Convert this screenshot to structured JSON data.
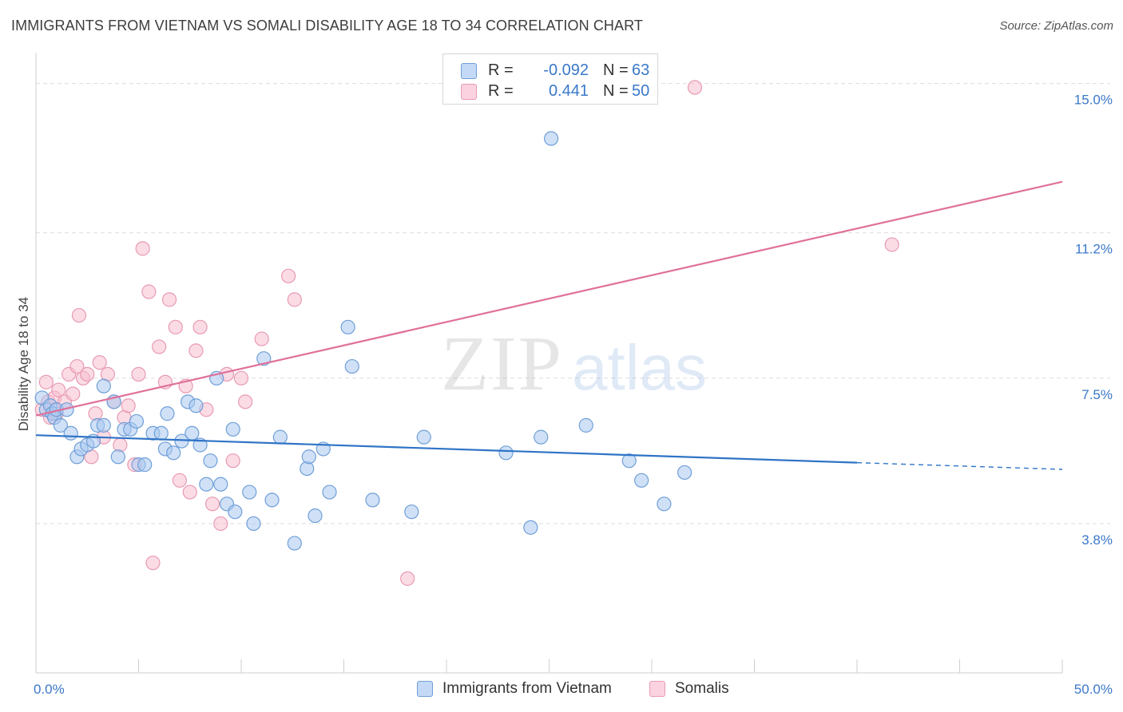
{
  "title": "IMMIGRANTS FROM VIETNAM VS SOMALI DISABILITY AGE 18 TO 34 CORRELATION CHART",
  "source": "Source: ZipAtlas.com",
  "watermark": {
    "zip": "ZIP",
    "atlas": "atlas"
  },
  "legend": {
    "r_label": "R =",
    "n_label": "N =",
    "entries": [
      {
        "name": "Immigrants from Vietnam",
        "r": "-0.092",
        "n": "63"
      },
      {
        "name": "Somalis",
        "r": "0.441",
        "n": "50"
      }
    ]
  },
  "chart_data": {
    "type": "scatter",
    "title": "IMMIGRANTS FROM VIETNAM VS SOMALI DISABILITY AGE 18 TO 34 CORRELATION CHART",
    "xlabel": "",
    "ylabel": "Disability Age 18 to 34",
    "xlim": [
      0,
      50
    ],
    "ylim": [
      0,
      15.5
    ],
    "x_tick_labels": [
      "0.0%",
      "50.0%"
    ],
    "y_ticks": [
      {
        "value": 3.8,
        "label": "3.8%"
      },
      {
        "value": 7.5,
        "label": "7.5%"
      },
      {
        "value": 11.2,
        "label": "11.2%"
      },
      {
        "value": 15.0,
        "label": "15.0%"
      }
    ],
    "colors": {
      "vietnam_fill": "#a9c8f0",
      "vietnam_stroke": "#6f9fd8",
      "vietnam_line": "#2f74c6",
      "somali_fill": "#f7bfd0",
      "somali_stroke": "#e89ab4",
      "somali_line": "#e0709a",
      "tick_label": "#3a78c8",
      "grid": "#dddddd"
    },
    "series": [
      {
        "name": "Immigrants from Vietnam",
        "trend": {
          "x0": 0,
          "y0": 6.05,
          "x1": 40,
          "y1": 5.35,
          "x_dash_end": 50,
          "y_dash_end": 5.18
        },
        "points": [
          [
            0.3,
            7.0
          ],
          [
            0.5,
            6.7
          ],
          [
            0.7,
            6.8
          ],
          [
            0.8,
            6.6
          ],
          [
            0.9,
            6.5
          ],
          [
            1.0,
            6.7
          ],
          [
            1.2,
            6.3
          ],
          [
            1.5,
            6.7
          ],
          [
            1.7,
            6.1
          ],
          [
            2.0,
            5.5
          ],
          [
            2.2,
            5.7
          ],
          [
            2.5,
            5.8
          ],
          [
            2.8,
            5.9
          ],
          [
            3.0,
            6.3
          ],
          [
            3.3,
            6.3
          ],
          [
            3.3,
            7.3
          ],
          [
            3.8,
            6.9
          ],
          [
            4.0,
            5.5
          ],
          [
            4.3,
            6.2
          ],
          [
            4.6,
            6.2
          ],
          [
            4.9,
            6.4
          ],
          [
            5.0,
            5.3
          ],
          [
            5.3,
            5.3
          ],
          [
            5.7,
            6.1
          ],
          [
            6.1,
            6.1
          ],
          [
            6.3,
            5.7
          ],
          [
            6.4,
            6.6
          ],
          [
            6.7,
            5.6
          ],
          [
            7.1,
            5.9
          ],
          [
            7.4,
            6.9
          ],
          [
            7.6,
            6.1
          ],
          [
            7.8,
            6.8
          ],
          [
            8.0,
            5.8
          ],
          [
            8.3,
            4.8
          ],
          [
            8.5,
            5.4
          ],
          [
            8.8,
            7.5
          ],
          [
            9.0,
            4.8
          ],
          [
            9.3,
            4.3
          ],
          [
            9.6,
            6.2
          ],
          [
            9.7,
            4.1
          ],
          [
            10.4,
            4.6
          ],
          [
            10.6,
            3.8
          ],
          [
            11.1,
            8.0
          ],
          [
            11.5,
            4.4
          ],
          [
            11.9,
            6.0
          ],
          [
            12.6,
            3.3
          ],
          [
            13.2,
            5.2
          ],
          [
            13.3,
            5.5
          ],
          [
            13.6,
            4.0
          ],
          [
            14.0,
            5.7
          ],
          [
            14.3,
            4.6
          ],
          [
            15.2,
            8.8
          ],
          [
            15.4,
            7.8
          ],
          [
            16.4,
            4.4
          ],
          [
            18.3,
            4.1
          ],
          [
            18.9,
            6.0
          ],
          [
            22.9,
            5.6
          ],
          [
            24.1,
            3.7
          ],
          [
            24.6,
            6.0
          ],
          [
            25.1,
            13.6
          ],
          [
            26.8,
            6.3
          ],
          [
            28.9,
            5.4
          ],
          [
            29.5,
            4.9
          ],
          [
            30.6,
            4.3
          ],
          [
            31.6,
            5.1
          ]
        ]
      },
      {
        "name": "Somalis",
        "trend": {
          "x0": 0,
          "y0": 6.55,
          "x1": 50,
          "y1": 12.5
        },
        "points": [
          [
            0.3,
            6.7
          ],
          [
            0.5,
            7.4
          ],
          [
            0.6,
            6.9
          ],
          [
            0.7,
            6.5
          ],
          [
            0.9,
            7.0
          ],
          [
            1.0,
            6.6
          ],
          [
            1.1,
            7.2
          ],
          [
            1.4,
            6.9
          ],
          [
            1.6,
            7.6
          ],
          [
            1.8,
            7.1
          ],
          [
            2.0,
            7.8
          ],
          [
            2.1,
            9.1
          ],
          [
            2.3,
            7.5
          ],
          [
            2.5,
            7.6
          ],
          [
            2.7,
            5.5
          ],
          [
            2.9,
            6.6
          ],
          [
            3.1,
            7.9
          ],
          [
            3.3,
            6.0
          ],
          [
            3.5,
            7.6
          ],
          [
            3.8,
            6.9
          ],
          [
            4.1,
            5.8
          ],
          [
            4.3,
            6.5
          ],
          [
            4.5,
            6.8
          ],
          [
            4.8,
            5.3
          ],
          [
            5.0,
            7.6
          ],
          [
            5.2,
            10.8
          ],
          [
            5.5,
            9.7
          ],
          [
            5.7,
            2.8
          ],
          [
            6.0,
            8.3
          ],
          [
            6.3,
            7.4
          ],
          [
            6.5,
            9.5
          ],
          [
            6.8,
            8.8
          ],
          [
            7.0,
            4.9
          ],
          [
            7.3,
            7.3
          ],
          [
            7.5,
            4.6
          ],
          [
            7.8,
            8.2
          ],
          [
            8.0,
            8.8
          ],
          [
            8.3,
            6.7
          ],
          [
            8.6,
            4.3
          ],
          [
            9.0,
            3.8
          ],
          [
            9.3,
            7.6
          ],
          [
            9.6,
            5.4
          ],
          [
            10.0,
            7.5
          ],
          [
            10.2,
            6.9
          ],
          [
            11.0,
            8.5
          ],
          [
            12.3,
            10.1
          ],
          [
            12.6,
            9.5
          ],
          [
            18.1,
            2.4
          ],
          [
            32.1,
            14.9
          ],
          [
            41.7,
            10.9
          ]
        ]
      }
    ]
  }
}
